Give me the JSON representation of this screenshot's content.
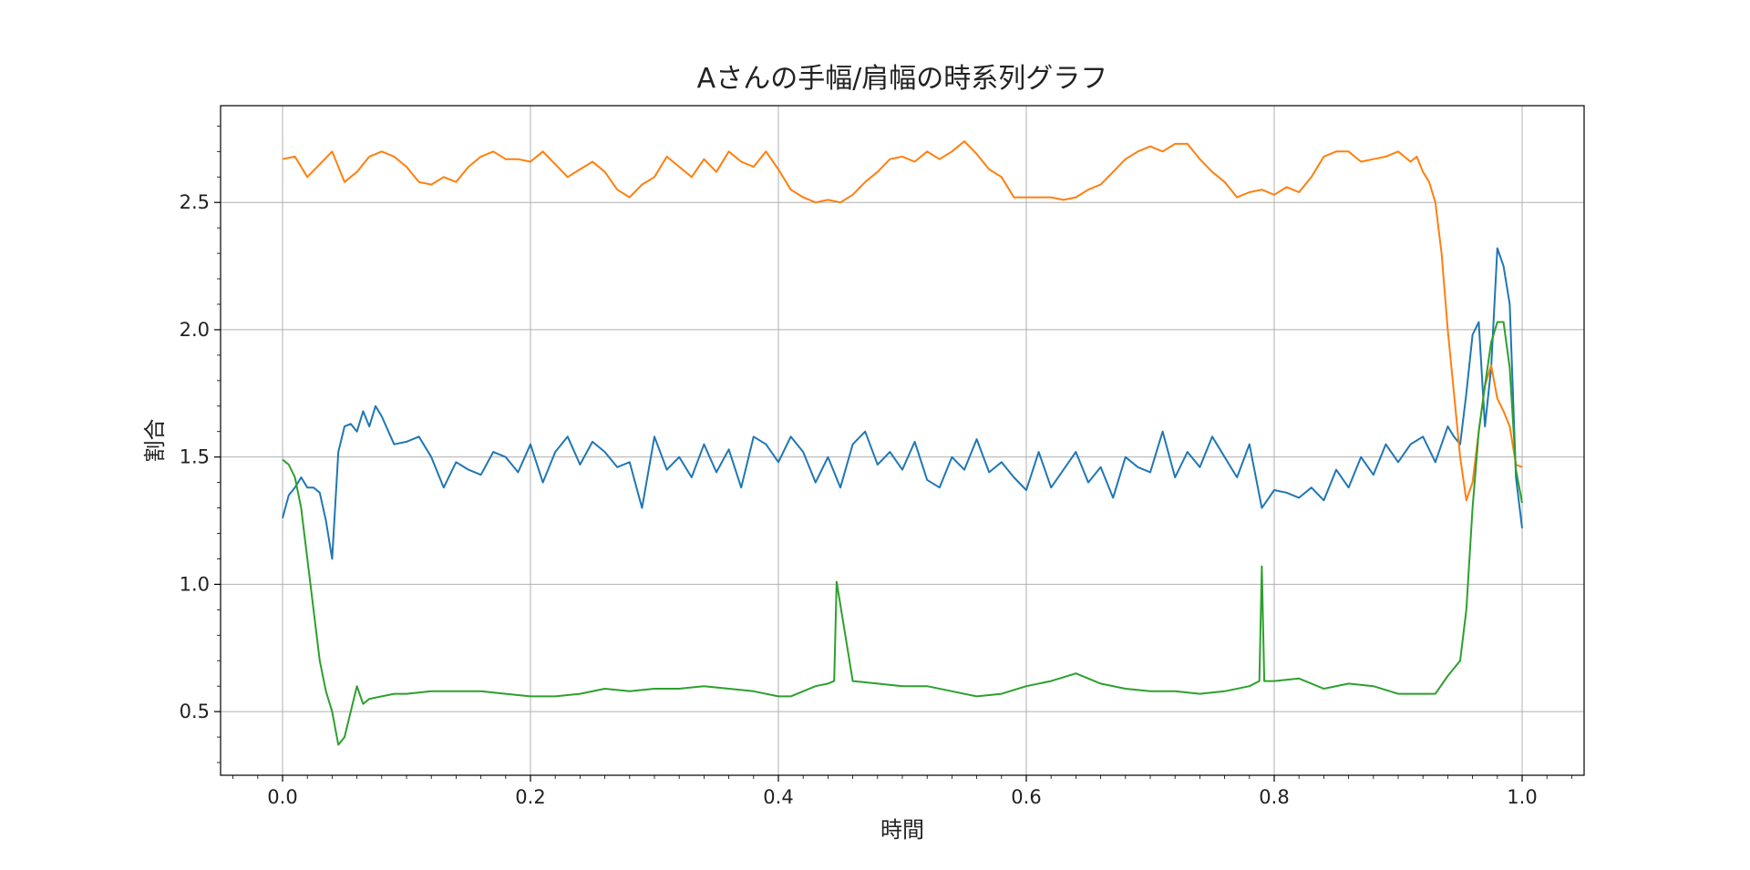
{
  "chart_data": {
    "type": "line",
    "title": "Aさんの手幅/肩幅の時系列グラフ",
    "xlabel": "時間",
    "ylabel": "割合",
    "xlim": [
      -0.05,
      1.05
    ],
    "ylim": [
      0.25,
      2.88
    ],
    "xticks": [
      "0.0",
      "0.2",
      "0.4",
      "0.6",
      "0.8",
      "1.0"
    ],
    "yticks": [
      "0.5",
      "1.0",
      "1.5",
      "2.0",
      "2.5"
    ],
    "grid": true,
    "legend": "none",
    "series": [
      {
        "color": "#1f77b4",
        "points": [
          [
            0.0,
            1.26
          ],
          [
            0.005,
            1.35
          ],
          [
            0.01,
            1.38
          ],
          [
            0.015,
            1.42
          ],
          [
            0.02,
            1.38
          ],
          [
            0.025,
            1.38
          ],
          [
            0.03,
            1.36
          ],
          [
            0.035,
            1.25
          ],
          [
            0.04,
            1.1
          ],
          [
            0.045,
            1.52
          ],
          [
            0.05,
            1.62
          ],
          [
            0.055,
            1.63
          ],
          [
            0.06,
            1.6
          ],
          [
            0.065,
            1.68
          ],
          [
            0.07,
            1.62
          ],
          [
            0.075,
            1.7
          ],
          [
            0.08,
            1.66
          ],
          [
            0.09,
            1.55
          ],
          [
            0.1,
            1.56
          ],
          [
            0.11,
            1.58
          ],
          [
            0.12,
            1.5
          ],
          [
            0.13,
            1.38
          ],
          [
            0.14,
            1.48
          ],
          [
            0.15,
            1.45
          ],
          [
            0.16,
            1.43
          ],
          [
            0.17,
            1.52
          ],
          [
            0.18,
            1.5
          ],
          [
            0.19,
            1.44
          ],
          [
            0.2,
            1.55
          ],
          [
            0.21,
            1.4
          ],
          [
            0.22,
            1.52
          ],
          [
            0.23,
            1.58
          ],
          [
            0.24,
            1.47
          ],
          [
            0.25,
            1.56
          ],
          [
            0.26,
            1.52
          ],
          [
            0.27,
            1.46
          ],
          [
            0.28,
            1.48
          ],
          [
            0.29,
            1.3
          ],
          [
            0.3,
            1.58
          ],
          [
            0.31,
            1.45
          ],
          [
            0.32,
            1.5
          ],
          [
            0.33,
            1.42
          ],
          [
            0.34,
            1.55
          ],
          [
            0.35,
            1.44
          ],
          [
            0.36,
            1.53
          ],
          [
            0.37,
            1.38
          ],
          [
            0.38,
            1.58
          ],
          [
            0.39,
            1.55
          ],
          [
            0.4,
            1.48
          ],
          [
            0.41,
            1.58
          ],
          [
            0.42,
            1.52
          ],
          [
            0.43,
            1.4
          ],
          [
            0.44,
            1.5
          ],
          [
            0.45,
            1.38
          ],
          [
            0.46,
            1.55
          ],
          [
            0.47,
            1.6
          ],
          [
            0.48,
            1.47
          ],
          [
            0.49,
            1.52
          ],
          [
            0.5,
            1.45
          ],
          [
            0.51,
            1.56
          ],
          [
            0.52,
            1.41
          ],
          [
            0.53,
            1.38
          ],
          [
            0.54,
            1.5
          ],
          [
            0.55,
            1.45
          ],
          [
            0.56,
            1.57
          ],
          [
            0.57,
            1.44
          ],
          [
            0.58,
            1.48
          ],
          [
            0.59,
            1.42
          ],
          [
            0.6,
            1.37
          ],
          [
            0.61,
            1.52
          ],
          [
            0.62,
            1.38
          ],
          [
            0.63,
            1.45
          ],
          [
            0.64,
            1.52
          ],
          [
            0.65,
            1.4
          ],
          [
            0.66,
            1.46
          ],
          [
            0.67,
            1.34
          ],
          [
            0.68,
            1.5
          ],
          [
            0.69,
            1.46
          ],
          [
            0.7,
            1.44
          ],
          [
            0.71,
            1.6
          ],
          [
            0.72,
            1.42
          ],
          [
            0.73,
            1.52
          ],
          [
            0.74,
            1.46
          ],
          [
            0.75,
            1.58
          ],
          [
            0.76,
            1.5
          ],
          [
            0.77,
            1.42
          ],
          [
            0.78,
            1.55
          ],
          [
            0.79,
            1.3
          ],
          [
            0.8,
            1.37
          ],
          [
            0.81,
            1.36
          ],
          [
            0.82,
            1.34
          ],
          [
            0.83,
            1.38
          ],
          [
            0.84,
            1.33
          ],
          [
            0.85,
            1.45
          ],
          [
            0.86,
            1.38
          ],
          [
            0.87,
            1.5
          ],
          [
            0.88,
            1.43
          ],
          [
            0.89,
            1.55
          ],
          [
            0.9,
            1.48
          ],
          [
            0.91,
            1.55
          ],
          [
            0.92,
            1.58
          ],
          [
            0.93,
            1.48
          ],
          [
            0.94,
            1.62
          ],
          [
            0.945,
            1.58
          ],
          [
            0.95,
            1.55
          ],
          [
            0.955,
            1.75
          ],
          [
            0.96,
            1.98
          ],
          [
            0.965,
            2.03
          ],
          [
            0.97,
            1.62
          ],
          [
            0.975,
            1.85
          ],
          [
            0.98,
            2.32
          ],
          [
            0.985,
            2.25
          ],
          [
            0.99,
            2.1
          ],
          [
            0.995,
            1.42
          ],
          [
            1.0,
            1.22
          ]
        ]
      },
      {
        "color": "#ff7f0e",
        "points": [
          [
            0.0,
            2.67
          ],
          [
            0.01,
            2.68
          ],
          [
            0.02,
            2.6
          ],
          [
            0.03,
            2.65
          ],
          [
            0.04,
            2.7
          ],
          [
            0.05,
            2.58
          ],
          [
            0.06,
            2.62
          ],
          [
            0.07,
            2.68
          ],
          [
            0.08,
            2.7
          ],
          [
            0.09,
            2.68
          ],
          [
            0.1,
            2.64
          ],
          [
            0.11,
            2.58
          ],
          [
            0.12,
            2.57
          ],
          [
            0.13,
            2.6
          ],
          [
            0.14,
            2.58
          ],
          [
            0.15,
            2.64
          ],
          [
            0.16,
            2.68
          ],
          [
            0.17,
            2.7
          ],
          [
            0.18,
            2.67
          ],
          [
            0.19,
            2.67
          ],
          [
            0.2,
            2.66
          ],
          [
            0.21,
            2.7
          ],
          [
            0.22,
            2.65
          ],
          [
            0.23,
            2.6
          ],
          [
            0.24,
            2.63
          ],
          [
            0.25,
            2.66
          ],
          [
            0.26,
            2.62
          ],
          [
            0.27,
            2.55
          ],
          [
            0.28,
            2.52
          ],
          [
            0.29,
            2.57
          ],
          [
            0.3,
            2.6
          ],
          [
            0.31,
            2.68
          ],
          [
            0.32,
            2.64
          ],
          [
            0.33,
            2.6
          ],
          [
            0.34,
            2.67
          ],
          [
            0.35,
            2.62
          ],
          [
            0.36,
            2.7
          ],
          [
            0.37,
            2.66
          ],
          [
            0.38,
            2.64
          ],
          [
            0.39,
            2.7
          ],
          [
            0.4,
            2.63
          ],
          [
            0.41,
            2.55
          ],
          [
            0.42,
            2.52
          ],
          [
            0.43,
            2.5
          ],
          [
            0.44,
            2.51
          ],
          [
            0.45,
            2.5
          ],
          [
            0.46,
            2.53
          ],
          [
            0.47,
            2.58
          ],
          [
            0.48,
            2.62
          ],
          [
            0.49,
            2.67
          ],
          [
            0.5,
            2.68
          ],
          [
            0.51,
            2.66
          ],
          [
            0.52,
            2.7
          ],
          [
            0.53,
            2.67
          ],
          [
            0.54,
            2.7
          ],
          [
            0.55,
            2.74
          ],
          [
            0.56,
            2.69
          ],
          [
            0.57,
            2.63
          ],
          [
            0.58,
            2.6
          ],
          [
            0.59,
            2.52
          ],
          [
            0.6,
            2.52
          ],
          [
            0.61,
            2.52
          ],
          [
            0.62,
            2.52
          ],
          [
            0.63,
            2.51
          ],
          [
            0.64,
            2.52
          ],
          [
            0.65,
            2.55
          ],
          [
            0.66,
            2.57
          ],
          [
            0.67,
            2.62
          ],
          [
            0.68,
            2.67
          ],
          [
            0.69,
            2.7
          ],
          [
            0.7,
            2.72
          ],
          [
            0.71,
            2.7
          ],
          [
            0.72,
            2.73
          ],
          [
            0.73,
            2.73
          ],
          [
            0.74,
            2.67
          ],
          [
            0.75,
            2.62
          ],
          [
            0.76,
            2.58
          ],
          [
            0.77,
            2.52
          ],
          [
            0.78,
            2.54
          ],
          [
            0.79,
            2.55
          ],
          [
            0.8,
            2.53
          ],
          [
            0.81,
            2.56
          ],
          [
            0.82,
            2.54
          ],
          [
            0.83,
            2.6
          ],
          [
            0.84,
            2.68
          ],
          [
            0.85,
            2.7
          ],
          [
            0.86,
            2.7
          ],
          [
            0.87,
            2.66
          ],
          [
            0.88,
            2.67
          ],
          [
            0.89,
            2.68
          ],
          [
            0.9,
            2.7
          ],
          [
            0.91,
            2.66
          ],
          [
            0.915,
            2.68
          ],
          [
            0.92,
            2.62
          ],
          [
            0.925,
            2.58
          ],
          [
            0.93,
            2.5
          ],
          [
            0.935,
            2.3
          ],
          [
            0.94,
            2.0
          ],
          [
            0.945,
            1.75
          ],
          [
            0.95,
            1.5
          ],
          [
            0.955,
            1.33
          ],
          [
            0.96,
            1.4
          ],
          [
            0.965,
            1.6
          ],
          [
            0.97,
            1.78
          ],
          [
            0.975,
            1.86
          ],
          [
            0.98,
            1.73
          ],
          [
            0.985,
            1.68
          ],
          [
            0.99,
            1.62
          ],
          [
            0.995,
            1.47
          ],
          [
            1.0,
            1.46
          ]
        ]
      },
      {
        "color": "#2ca02c",
        "points": [
          [
            0.0,
            1.49
          ],
          [
            0.005,
            1.47
          ],
          [
            0.01,
            1.42
          ],
          [
            0.015,
            1.3
          ],
          [
            0.02,
            1.1
          ],
          [
            0.025,
            0.9
          ],
          [
            0.03,
            0.7
          ],
          [
            0.035,
            0.58
          ],
          [
            0.04,
            0.5
          ],
          [
            0.045,
            0.37
          ],
          [
            0.05,
            0.4
          ],
          [
            0.055,
            0.5
          ],
          [
            0.06,
            0.6
          ],
          [
            0.065,
            0.53
          ],
          [
            0.07,
            0.55
          ],
          [
            0.08,
            0.56
          ],
          [
            0.09,
            0.57
          ],
          [
            0.1,
            0.57
          ],
          [
            0.12,
            0.58
          ],
          [
            0.14,
            0.58
          ],
          [
            0.16,
            0.58
          ],
          [
            0.18,
            0.57
          ],
          [
            0.2,
            0.56
          ],
          [
            0.22,
            0.56
          ],
          [
            0.24,
            0.57
          ],
          [
            0.26,
            0.59
          ],
          [
            0.28,
            0.58
          ],
          [
            0.3,
            0.59
          ],
          [
            0.32,
            0.59
          ],
          [
            0.34,
            0.6
          ],
          [
            0.36,
            0.59
          ],
          [
            0.38,
            0.58
          ],
          [
            0.4,
            0.56
          ],
          [
            0.41,
            0.56
          ],
          [
            0.42,
            0.58
          ],
          [
            0.43,
            0.6
          ],
          [
            0.44,
            0.61
          ],
          [
            0.445,
            0.62
          ],
          [
            0.447,
            1.01
          ],
          [
            0.46,
            0.62
          ],
          [
            0.48,
            0.61
          ],
          [
            0.5,
            0.6
          ],
          [
            0.52,
            0.6
          ],
          [
            0.54,
            0.58
          ],
          [
            0.56,
            0.56
          ],
          [
            0.58,
            0.57
          ],
          [
            0.6,
            0.6
          ],
          [
            0.62,
            0.62
          ],
          [
            0.64,
            0.65
          ],
          [
            0.66,
            0.61
          ],
          [
            0.68,
            0.59
          ],
          [
            0.7,
            0.58
          ],
          [
            0.72,
            0.58
          ],
          [
            0.74,
            0.57
          ],
          [
            0.76,
            0.58
          ],
          [
            0.78,
            0.6
          ],
          [
            0.788,
            0.62
          ],
          [
            0.79,
            1.07
          ],
          [
            0.792,
            0.62
          ],
          [
            0.8,
            0.62
          ],
          [
            0.82,
            0.63
          ],
          [
            0.84,
            0.59
          ],
          [
            0.86,
            0.61
          ],
          [
            0.88,
            0.6
          ],
          [
            0.9,
            0.57
          ],
          [
            0.92,
            0.57
          ],
          [
            0.93,
            0.57
          ],
          [
            0.94,
            0.64
          ],
          [
            0.95,
            0.7
          ],
          [
            0.955,
            0.9
          ],
          [
            0.96,
            1.3
          ],
          [
            0.965,
            1.6
          ],
          [
            0.97,
            1.78
          ],
          [
            0.975,
            1.95
          ],
          [
            0.98,
            2.03
          ],
          [
            0.985,
            2.03
          ],
          [
            0.99,
            1.85
          ],
          [
            0.995,
            1.45
          ],
          [
            1.0,
            1.32
          ]
        ]
      }
    ]
  }
}
